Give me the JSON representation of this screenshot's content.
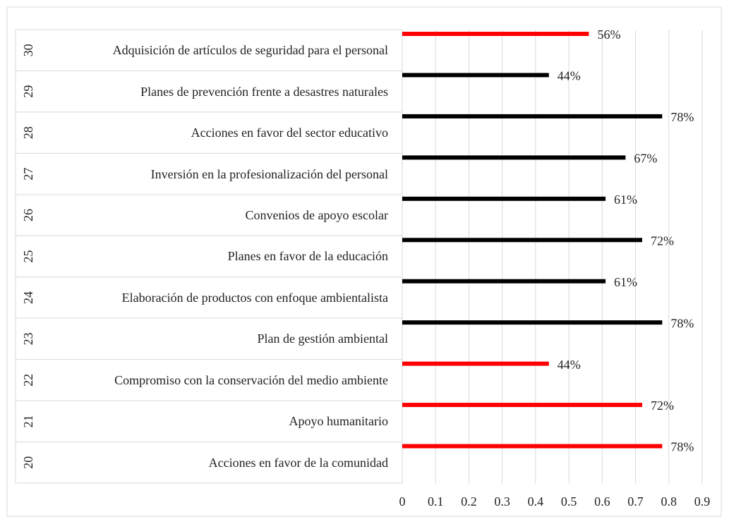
{
  "chart_data": {
    "type": "bar",
    "orientation": "horizontal",
    "category_numbers": [
      30,
      29,
      28,
      27,
      26,
      25,
      24,
      23,
      22,
      21,
      20
    ],
    "categories": [
      "Adquisición de artículos de seguridad para el personal",
      "Planes de prevención frente a desastres naturales",
      "Acciones en favor del sector educativo",
      "Inversión en la profesionalización del personal",
      "Convenios de apoyo escolar",
      "Planes en favor de la educación",
      "Elaboración de productos con enfoque ambientalista",
      "Plan de gestión ambiental",
      "Compromiso con la conservación del medio ambiente",
      "Apoyo humanitario",
      "Acciones en favor de la comunidad"
    ],
    "values": [
      0.56,
      0.44,
      0.78,
      0.67,
      0.61,
      0.72,
      0.61,
      0.78,
      0.44,
      0.72,
      0.78
    ],
    "value_labels": [
      "56%",
      "44%",
      "78%",
      "67%",
      "61%",
      "72%",
      "61%",
      "78%",
      "44%",
      "72%",
      "78%"
    ],
    "colors": [
      "#ff0000",
      "#000000",
      "#000000",
      "#000000",
      "#000000",
      "#000000",
      "#000000",
      "#000000",
      "#ff0000",
      "#ff0000",
      "#ff0000"
    ],
    "xlim": [
      0,
      0.9
    ],
    "xticks": [
      0,
      0.1,
      0.2,
      0.3,
      0.4,
      0.5,
      0.6,
      0.7,
      0.8,
      0.9
    ],
    "grid": true
  }
}
